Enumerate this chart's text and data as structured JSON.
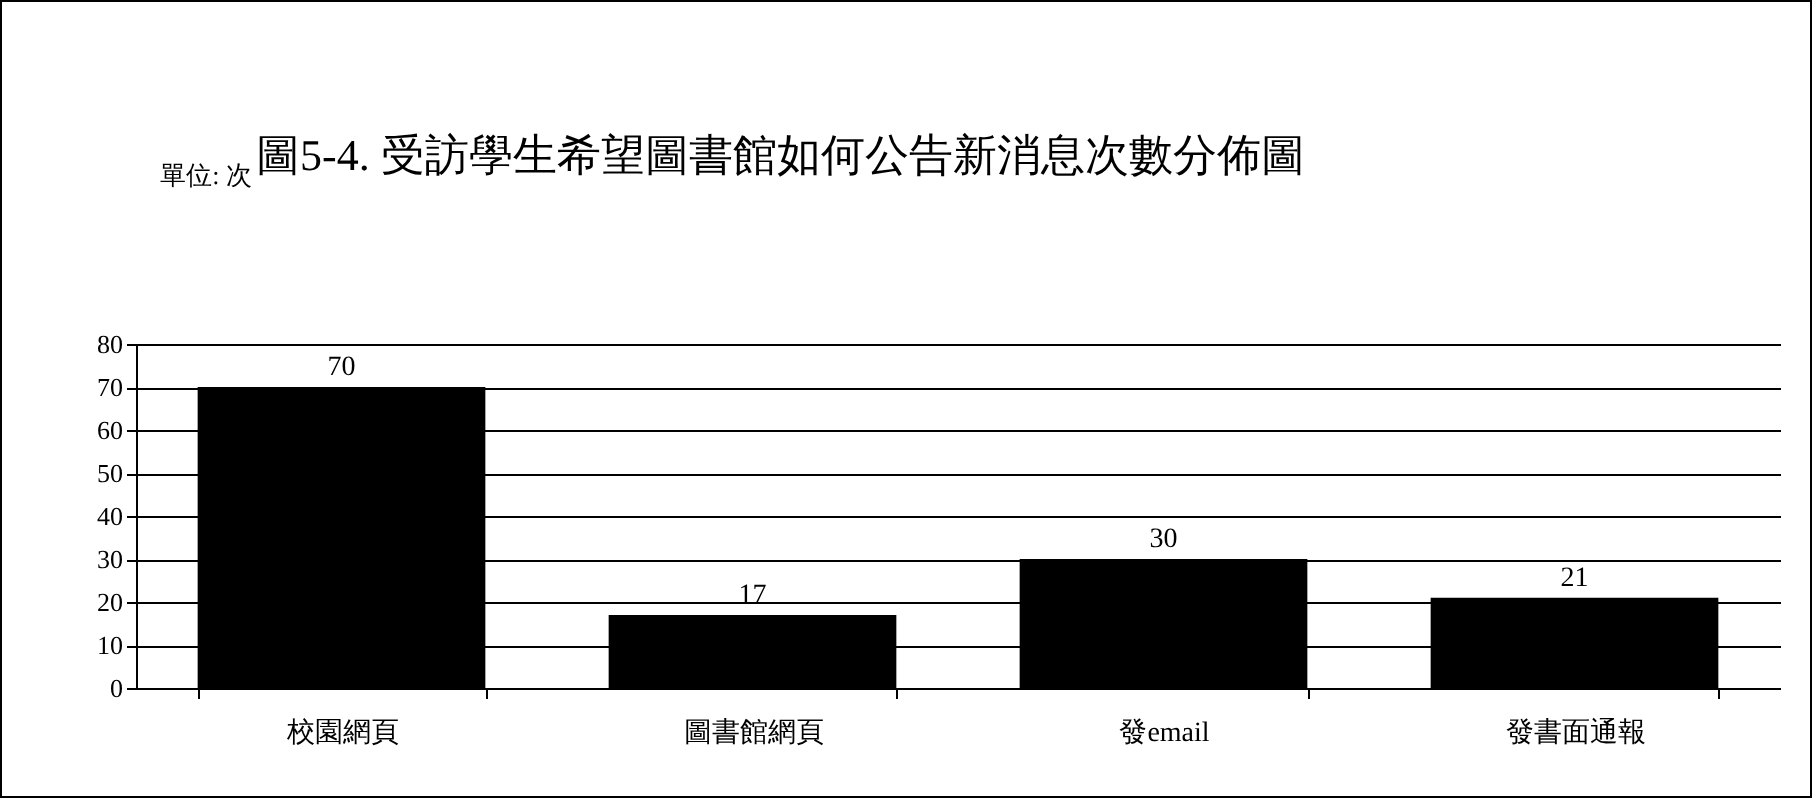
{
  "chart_data": {
    "type": "bar",
    "title": "圖5-4. 受訪學生希望圖書館如何公告新消息次數分佈圖",
    "annotations": [
      "單位: 次"
    ],
    "categories": [
      "校園網頁",
      "圖書館網頁",
      "發email",
      "發書面通報"
    ],
    "values": [
      70,
      17,
      30,
      21
    ],
    "color": "#000000",
    "ylim": [
      0,
      80
    ],
    "yticks": [
      0,
      10,
      20,
      30,
      40,
      50,
      60,
      70,
      80
    ],
    "grid": "y",
    "data_labels": true
  }
}
